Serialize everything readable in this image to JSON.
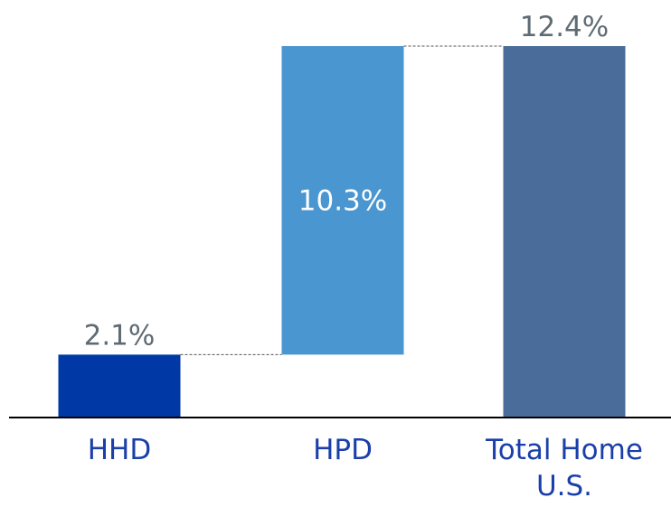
{
  "chart_data": {
    "type": "waterfall",
    "categories": [
      "HHD",
      "HPD",
      "Total Home U.S."
    ],
    "values": [
      2.1,
      10.3,
      12.4
    ],
    "value_labels": [
      "2.1%",
      "10.3%",
      "12.4%"
    ],
    "measures": [
      "relative",
      "relative",
      "total"
    ],
    "colors": [
      "#0039a6",
      "#4a96d0",
      "#4a6c9a"
    ]
  }
}
